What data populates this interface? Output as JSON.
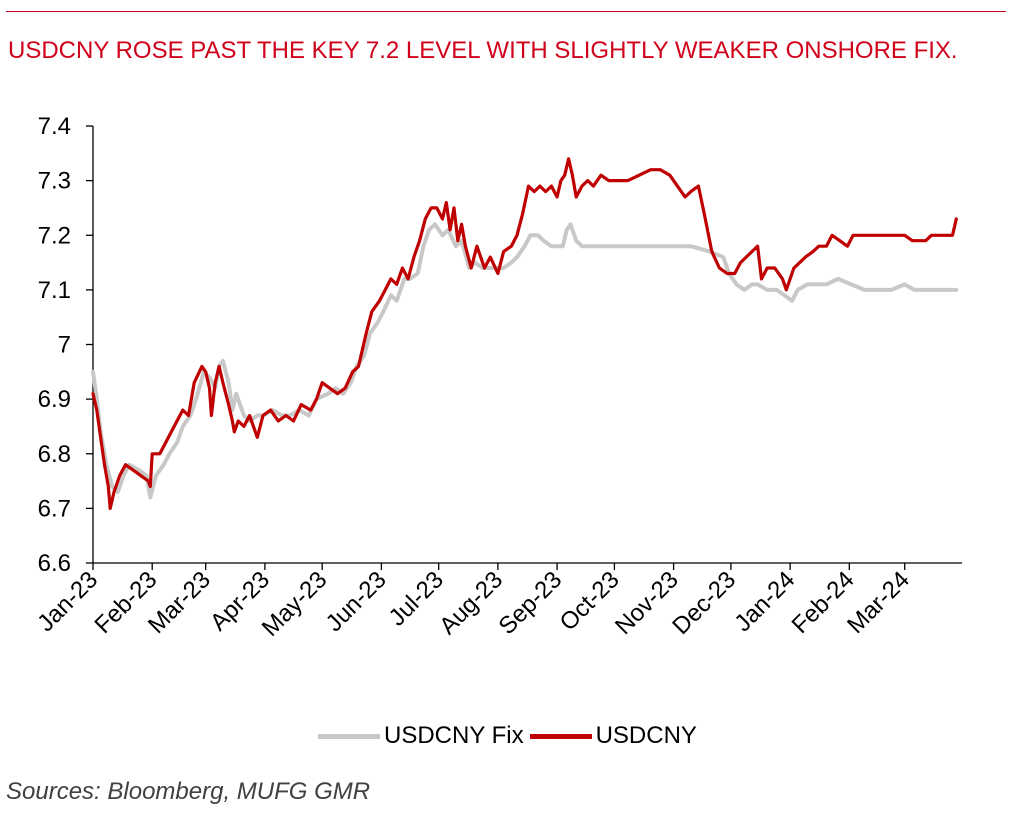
{
  "title": "USDCNY ROSE PAST THE KEY 7.2 LEVEL WITH SLIGHTLY WEAKER ONSHORE FIX.",
  "source": "Sources:  Bloomberg, MUFG GMR",
  "colors": {
    "accent": "#d0021b",
    "fix": "#c8c8c8",
    "spot": "#c00000"
  },
  "chart_data": {
    "type": "line",
    "title": "USDCNY ROSE PAST THE KEY 7.2 LEVEL WITH SLIGHTLY WEAKER ONSHORE FIX.",
    "xlabel": "",
    "ylabel": "",
    "ylim": [
      6.6,
      7.4
    ],
    "yticks": [
      6.6,
      6.7,
      6.8,
      6.9,
      7,
      7.1,
      7.2,
      7.3,
      7.4
    ],
    "ytick_labels": [
      "6.6",
      "6.7",
      "6.8",
      "6.9",
      "7",
      "7.1",
      "7.2",
      "7.3",
      "7.4"
    ],
    "xticks": [
      "2023-01-01",
      "2023-02-01",
      "2023-03-01",
      "2023-04-01",
      "2023-05-01",
      "2023-06-01",
      "2023-07-01",
      "2023-08-01",
      "2023-09-01",
      "2023-10-01",
      "2023-11-01",
      "2023-12-01",
      "2024-01-01",
      "2024-02-01",
      "2024-03-01"
    ],
    "xtick_labels": [
      "Jan-23",
      "Feb-23",
      "Mar-23",
      "Apr-23",
      "May-23",
      "Jun-23",
      "Jul-23",
      "Aug-23",
      "Sep-23",
      "Oct-23",
      "Nov-23",
      "Dec-23",
      "Jan-24",
      "Feb-24",
      "Mar-24"
    ],
    "xlim": [
      "2023-01-01",
      "2024-03-31"
    ],
    "grid": false,
    "legend": "bottom",
    "series": [
      {
        "name": "USDCNY Fix",
        "color": "#c8c8c8",
        "points": [
          [
            "2023-01-01",
            6.95
          ],
          [
            "2023-01-03",
            6.9
          ],
          [
            "2023-01-05",
            6.84
          ],
          [
            "2023-01-08",
            6.78
          ],
          [
            "2023-01-11",
            6.74
          ],
          [
            "2023-01-14",
            6.73
          ],
          [
            "2023-01-17",
            6.76
          ],
          [
            "2023-01-20",
            6.78
          ],
          [
            "2023-01-25",
            6.77
          ],
          [
            "2023-01-29",
            6.76
          ],
          [
            "2023-01-31",
            6.72
          ],
          [
            "2023-02-03",
            6.76
          ],
          [
            "2023-02-07",
            6.78
          ],
          [
            "2023-02-10",
            6.8
          ],
          [
            "2023-02-14",
            6.82
          ],
          [
            "2023-02-17",
            6.85
          ],
          [
            "2023-02-21",
            6.87
          ],
          [
            "2023-02-24",
            6.9
          ],
          [
            "2023-02-28",
            6.95
          ],
          [
            "2023-03-03",
            6.94
          ],
          [
            "2023-03-06",
            6.92
          ],
          [
            "2023-03-08",
            6.96
          ],
          [
            "2023-03-10",
            6.97
          ],
          [
            "2023-03-13",
            6.93
          ],
          [
            "2023-03-15",
            6.88
          ],
          [
            "2023-03-17",
            6.91
          ],
          [
            "2023-03-21",
            6.87
          ],
          [
            "2023-03-24",
            6.86
          ],
          [
            "2023-03-28",
            6.87
          ],
          [
            "2023-03-31",
            6.87
          ],
          [
            "2023-04-05",
            6.88
          ],
          [
            "2023-04-10",
            6.87
          ],
          [
            "2023-04-14",
            6.87
          ],
          [
            "2023-04-19",
            6.88
          ],
          [
            "2023-04-24",
            6.87
          ],
          [
            "2023-04-28",
            6.9
          ],
          [
            "2023-05-04",
            6.91
          ],
          [
            "2023-05-08",
            6.92
          ],
          [
            "2023-05-12",
            6.91
          ],
          [
            "2023-05-16",
            6.93
          ],
          [
            "2023-05-19",
            6.96
          ],
          [
            "2023-05-23",
            6.98
          ],
          [
            "2023-05-26",
            7.02
          ],
          [
            "2023-05-30",
            7.04
          ],
          [
            "2023-06-02",
            7.06
          ],
          [
            "2023-06-06",
            7.09
          ],
          [
            "2023-06-09",
            7.08
          ],
          [
            "2023-06-13",
            7.12
          ],
          [
            "2023-06-16",
            7.12
          ],
          [
            "2023-06-20",
            7.13
          ],
          [
            "2023-06-23",
            7.18
          ],
          [
            "2023-06-26",
            7.21
          ],
          [
            "2023-06-29",
            7.22
          ],
          [
            "2023-07-03",
            7.2
          ],
          [
            "2023-07-06",
            7.21
          ],
          [
            "2023-07-10",
            7.18
          ],
          [
            "2023-07-13",
            7.19
          ],
          [
            "2023-07-17",
            7.14
          ],
          [
            "2023-07-20",
            7.15
          ],
          [
            "2023-07-24",
            7.14
          ],
          [
            "2023-07-28",
            7.14
          ],
          [
            "2023-08-01",
            7.14
          ],
          [
            "2023-08-04",
            7.14
          ],
          [
            "2023-08-08",
            7.15
          ],
          [
            "2023-08-11",
            7.16
          ],
          [
            "2023-08-15",
            7.18
          ],
          [
            "2023-08-18",
            7.2
          ],
          [
            "2023-08-22",
            7.2
          ],
          [
            "2023-08-25",
            7.19
          ],
          [
            "2023-08-29",
            7.18
          ],
          [
            "2023-09-01",
            7.18
          ],
          [
            "2023-09-04",
            7.18
          ],
          [
            "2023-09-06",
            7.21
          ],
          [
            "2023-09-08",
            7.22
          ],
          [
            "2023-09-11",
            7.19
          ],
          [
            "2023-09-14",
            7.18
          ],
          [
            "2023-09-18",
            7.18
          ],
          [
            "2023-09-25",
            7.18
          ],
          [
            "2023-10-02",
            7.18
          ],
          [
            "2023-10-10",
            7.18
          ],
          [
            "2023-10-20",
            7.18
          ],
          [
            "2023-10-31",
            7.18
          ],
          [
            "2023-11-10",
            7.18
          ],
          [
            "2023-11-20",
            7.17
          ],
          [
            "2023-11-27",
            7.16
          ],
          [
            "2023-11-30",
            7.13
          ],
          [
            "2023-12-04",
            7.11
          ],
          [
            "2023-12-08",
            7.1
          ],
          [
            "2023-12-12",
            7.11
          ],
          [
            "2023-12-15",
            7.11
          ],
          [
            "2023-12-20",
            7.1
          ],
          [
            "2023-12-25",
            7.1
          ],
          [
            "2023-12-29",
            7.09
          ],
          [
            "2024-01-02",
            7.08
          ],
          [
            "2024-01-05",
            7.1
          ],
          [
            "2024-01-10",
            7.11
          ],
          [
            "2024-01-15",
            7.11
          ],
          [
            "2024-01-20",
            7.11
          ],
          [
            "2024-01-26",
            7.12
          ],
          [
            "2024-02-02",
            7.11
          ],
          [
            "2024-02-09",
            7.1
          ],
          [
            "2024-02-16",
            7.1
          ],
          [
            "2024-02-23",
            7.1
          ],
          [
            "2024-03-01",
            7.11
          ],
          [
            "2024-03-06",
            7.1
          ],
          [
            "2024-03-12",
            7.1
          ],
          [
            "2024-03-18",
            7.1
          ],
          [
            "2024-03-22",
            7.1
          ],
          [
            "2024-03-26",
            7.1
          ],
          [
            "2024-03-28",
            7.1
          ]
        ]
      },
      {
        "name": "USDCNY",
        "color": "#c00000",
        "points": [
          [
            "2023-01-01",
            6.91
          ],
          [
            "2023-01-03",
            6.88
          ],
          [
            "2023-01-05",
            6.83
          ],
          [
            "2023-01-07",
            6.78
          ],
          [
            "2023-01-09",
            6.74
          ],
          [
            "2023-01-10",
            6.7
          ],
          [
            "2023-01-12",
            6.73
          ],
          [
            "2023-01-15",
            6.76
          ],
          [
            "2023-01-18",
            6.78
          ],
          [
            "2023-01-22",
            6.77
          ],
          [
            "2023-01-26",
            6.76
          ],
          [
            "2023-01-30",
            6.75
          ],
          [
            "2023-01-31",
            6.74
          ],
          [
            "2023-02-01",
            6.8
          ],
          [
            "2023-02-05",
            6.8
          ],
          [
            "2023-02-08",
            6.82
          ],
          [
            "2023-02-11",
            6.84
          ],
          [
            "2023-02-14",
            6.86
          ],
          [
            "2023-02-17",
            6.88
          ],
          [
            "2023-02-20",
            6.87
          ],
          [
            "2023-02-23",
            6.93
          ],
          [
            "2023-02-27",
            6.96
          ],
          [
            "2023-03-01",
            6.95
          ],
          [
            "2023-03-03",
            6.92
          ],
          [
            "2023-03-04",
            6.87
          ],
          [
            "2023-03-06",
            6.93
          ],
          [
            "2023-03-08",
            6.96
          ],
          [
            "2023-03-10",
            6.93
          ],
          [
            "2023-03-13",
            6.89
          ],
          [
            "2023-03-15",
            6.86
          ],
          [
            "2023-03-16",
            6.84
          ],
          [
            "2023-03-18",
            6.86
          ],
          [
            "2023-03-21",
            6.85
          ],
          [
            "2023-03-24",
            6.87
          ],
          [
            "2023-03-28",
            6.83
          ],
          [
            "2023-03-31",
            6.87
          ],
          [
            "2023-04-04",
            6.88
          ],
          [
            "2023-04-08",
            6.86
          ],
          [
            "2023-04-12",
            6.87
          ],
          [
            "2023-04-16",
            6.86
          ],
          [
            "2023-04-20",
            6.89
          ],
          [
            "2023-04-25",
            6.88
          ],
          [
            "2023-04-28",
            6.9
          ],
          [
            "2023-05-01",
            6.93
          ],
          [
            "2023-05-05",
            6.92
          ],
          [
            "2023-05-09",
            6.91
          ],
          [
            "2023-05-13",
            6.92
          ],
          [
            "2023-05-17",
            6.95
          ],
          [
            "2023-05-20",
            6.96
          ],
          [
            "2023-05-24",
            7.02
          ],
          [
            "2023-05-27",
            7.06
          ],
          [
            "2023-05-31",
            7.08
          ],
          [
            "2023-06-03",
            7.1
          ],
          [
            "2023-06-06",
            7.12
          ],
          [
            "2023-06-09",
            7.11
          ],
          [
            "2023-06-12",
            7.14
          ],
          [
            "2023-06-15",
            7.12
          ],
          [
            "2023-06-18",
            7.16
          ],
          [
            "2023-06-21",
            7.19
          ],
          [
            "2023-06-24",
            7.23
          ],
          [
            "2023-06-27",
            7.25
          ],
          [
            "2023-06-30",
            7.25
          ],
          [
            "2023-07-03",
            7.23
          ],
          [
            "2023-07-05",
            7.26
          ],
          [
            "2023-07-07",
            7.21
          ],
          [
            "2023-07-09",
            7.25
          ],
          [
            "2023-07-11",
            7.19
          ],
          [
            "2023-07-13",
            7.22
          ],
          [
            "2023-07-15",
            7.18
          ],
          [
            "2023-07-18",
            7.14
          ],
          [
            "2023-07-21",
            7.18
          ],
          [
            "2023-07-25",
            7.14
          ],
          [
            "2023-07-28",
            7.16
          ],
          [
            "2023-08-01",
            7.13
          ],
          [
            "2023-08-04",
            7.17
          ],
          [
            "2023-08-08",
            7.18
          ],
          [
            "2023-08-11",
            7.2
          ],
          [
            "2023-08-14",
            7.24
          ],
          [
            "2023-08-17",
            7.29
          ],
          [
            "2023-08-20",
            7.28
          ],
          [
            "2023-08-23",
            7.29
          ],
          [
            "2023-08-26",
            7.28
          ],
          [
            "2023-08-29",
            7.29
          ],
          [
            "2023-09-01",
            7.27
          ],
          [
            "2023-09-03",
            7.3
          ],
          [
            "2023-09-05",
            7.31
          ],
          [
            "2023-09-07",
            7.34
          ],
          [
            "2023-09-09",
            7.31
          ],
          [
            "2023-09-11",
            7.27
          ],
          [
            "2023-09-14",
            7.29
          ],
          [
            "2023-09-17",
            7.3
          ],
          [
            "2023-09-20",
            7.29
          ],
          [
            "2023-09-24",
            7.31
          ],
          [
            "2023-09-28",
            7.3
          ],
          [
            "2023-10-02",
            7.3
          ],
          [
            "2023-10-08",
            7.3
          ],
          [
            "2023-10-14",
            7.31
          ],
          [
            "2023-10-20",
            7.32
          ],
          [
            "2023-10-25",
            7.32
          ],
          [
            "2023-10-30",
            7.31
          ],
          [
            "2023-11-03",
            7.29
          ],
          [
            "2023-11-07",
            7.27
          ],
          [
            "2023-11-10",
            7.28
          ],
          [
            "2023-11-14",
            7.29
          ],
          [
            "2023-11-17",
            7.24
          ],
          [
            "2023-11-21",
            7.17
          ],
          [
            "2023-11-25",
            7.14
          ],
          [
            "2023-11-29",
            7.13
          ],
          [
            "2023-12-03",
            7.13
          ],
          [
            "2023-12-06",
            7.15
          ],
          [
            "2023-12-09",
            7.16
          ],
          [
            "2023-12-12",
            7.17
          ],
          [
            "2023-12-15",
            7.18
          ],
          [
            "2023-12-17",
            7.12
          ],
          [
            "2023-12-20",
            7.14
          ],
          [
            "2023-12-24",
            7.14
          ],
          [
            "2023-12-28",
            7.12
          ],
          [
            "2023-12-30",
            7.1
          ],
          [
            "2024-01-03",
            7.14
          ],
          [
            "2024-01-06",
            7.15
          ],
          [
            "2024-01-09",
            7.16
          ],
          [
            "2024-01-13",
            7.17
          ],
          [
            "2024-01-16",
            7.18
          ],
          [
            "2024-01-20",
            7.18
          ],
          [
            "2024-01-23",
            7.2
          ],
          [
            "2024-01-27",
            7.19
          ],
          [
            "2024-01-31",
            7.18
          ],
          [
            "2024-02-03",
            7.2
          ],
          [
            "2024-02-09",
            7.2
          ],
          [
            "2024-02-16",
            7.2
          ],
          [
            "2024-02-23",
            7.2
          ],
          [
            "2024-03-01",
            7.2
          ],
          [
            "2024-03-05",
            7.19
          ],
          [
            "2024-03-08",
            7.19
          ],
          [
            "2024-03-12",
            7.19
          ],
          [
            "2024-03-15",
            7.2
          ],
          [
            "2024-03-18",
            7.2
          ],
          [
            "2024-03-22",
            7.2
          ],
          [
            "2024-03-26",
            7.2
          ],
          [
            "2024-03-28",
            7.23
          ]
        ]
      }
    ]
  }
}
